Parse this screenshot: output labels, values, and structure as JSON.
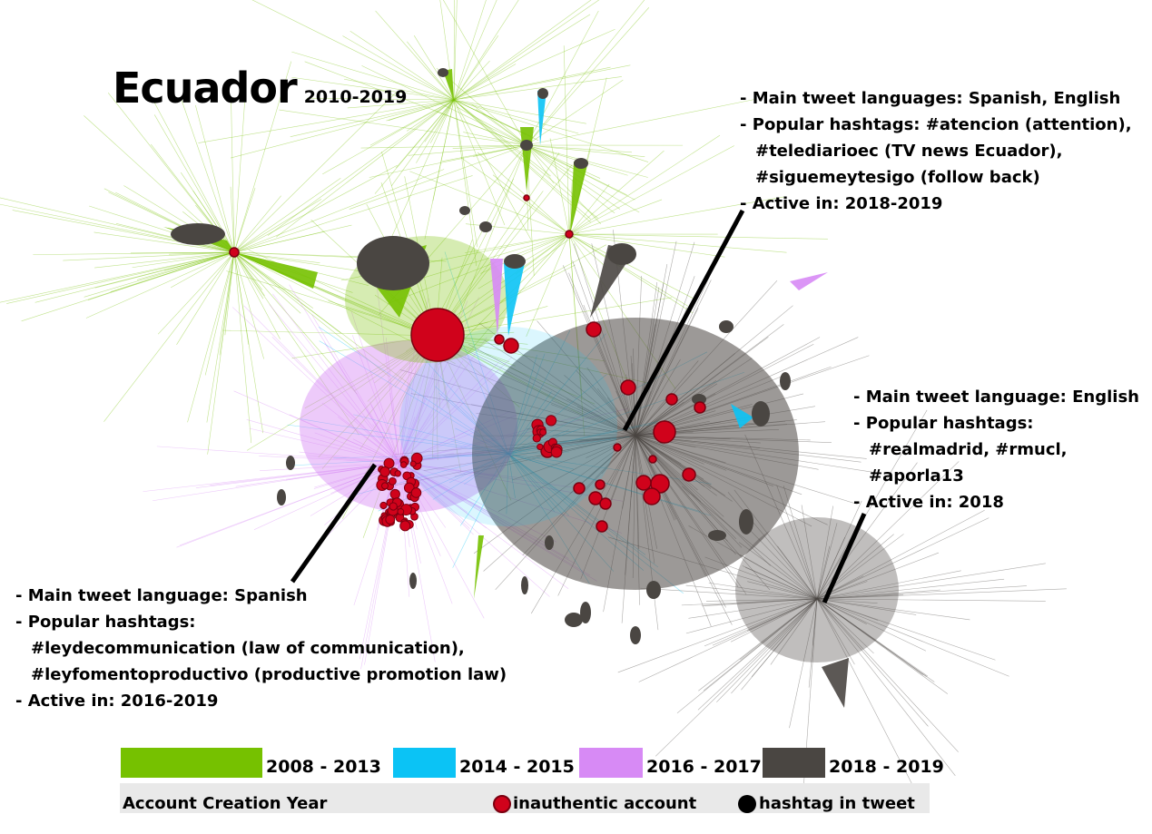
{
  "header": {
    "title": "Ecuador",
    "years": "2010-2019"
  },
  "annotations": {
    "top": {
      "lines": [
        "Main tweet languages: Spanish, English",
        "Popular hashtags: #atencion (attention),",
        "#telediarioec (TV news Ecuador),",
        "#siguemeytesigo (follow back)",
        "Active in: 2018-2019"
      ]
    },
    "right": {
      "lines": [
        "Main tweet language: English",
        "Popular hashtags:",
        "#realmadrid, #rmucl,",
        "#aporla13",
        "Active in: 2018"
      ]
    },
    "left": {
      "lines": [
        "Main tweet language: Spanish",
        "Popular hashtags:",
        "#leydecommunication (law of communication),",
        "#leyfomentoproductivo (productive promotion law)",
        "Active in: 2016-2019"
      ]
    }
  },
  "legend": {
    "title": "Account Creation Year",
    "year_groups": [
      {
        "label": "2008 - 2013",
        "color": "#76c100"
      },
      {
        "label": "2014 - 2015",
        "color": "#0bc3f5"
      },
      {
        "label": "2016 - 2017",
        "color": "#d78af5"
      },
      {
        "label": "2018 - 2019",
        "color": "#4a4642"
      }
    ],
    "inauthentic_label": "inauthentic account",
    "inauthentic_color": "#d0021b",
    "hashtag_label": "hashtag in tweet",
    "hashtag_color": "#000000"
  }
}
